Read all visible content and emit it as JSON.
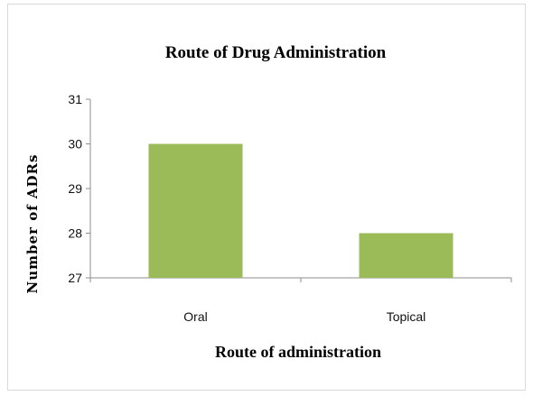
{
  "chart_data": {
    "type": "bar",
    "title": "Route of Drug Administration",
    "xlabel": "Route of administration",
    "ylabel": "Number of ADRs",
    "categories": [
      "Oral",
      "Topical"
    ],
    "values": [
      30,
      28
    ],
    "ylim": [
      27,
      31
    ],
    "yticks": [
      27,
      28,
      29,
      30,
      31
    ],
    "grid": false,
    "legend": "none",
    "bar_color": "#9bbb59"
  }
}
